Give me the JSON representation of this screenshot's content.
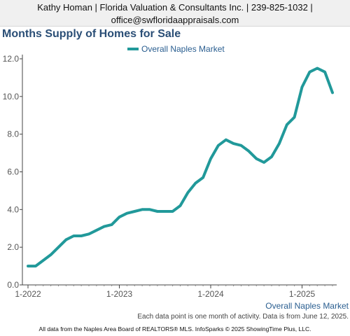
{
  "header": {
    "line1": "Kathy Homan | Florida Valuation & Consultants Inc. | 239-825-1032 |",
    "line2": "office@swfloridaappraisals.com"
  },
  "footnote": "Each data point is one month of activity. Data is from June 12, 2025.",
  "footer": "All data from the Naples Area Board of REALTORS® MLS. InfoSparks © 2025 ShowingTime Plus, LLC.",
  "colors": {
    "line": "#21999a",
    "title": "#2a4e76",
    "legend_text": "#2a5e90"
  },
  "chart_data": {
    "type": "line",
    "title": "Months Supply of Homes for Sale",
    "series_label": "Overall Naples Market",
    "legend_position": "top-center",
    "grid": false,
    "xlabel": "",
    "ylabel": "",
    "ylim": [
      0,
      12
    ],
    "y_ticks": [
      "0.0",
      "2.0",
      "4.0",
      "6.0",
      "8.0",
      "10.0",
      "12.0"
    ],
    "x_ticks": [
      "1-2022",
      "1-2023",
      "1-2024",
      "1-2025"
    ],
    "series": [
      {
        "name": "Overall Naples Market",
        "x": [
          "2022-01",
          "2022-02",
          "2022-03",
          "2022-04",
          "2022-05",
          "2022-06",
          "2022-07",
          "2022-08",
          "2022-09",
          "2022-10",
          "2022-11",
          "2022-12",
          "2023-01",
          "2023-02",
          "2023-03",
          "2023-04",
          "2023-05",
          "2023-06",
          "2023-07",
          "2023-08",
          "2023-09",
          "2023-10",
          "2023-11",
          "2023-12",
          "2024-01",
          "2024-02",
          "2024-03",
          "2024-04",
          "2024-05",
          "2024-06",
          "2024-07",
          "2024-08",
          "2024-09",
          "2024-10",
          "2024-11",
          "2024-12",
          "2025-01",
          "2025-02",
          "2025-03",
          "2025-04",
          "2025-05"
        ],
        "values": [
          1.0,
          1.0,
          1.3,
          1.6,
          2.0,
          2.4,
          2.6,
          2.6,
          2.7,
          2.9,
          3.1,
          3.2,
          3.6,
          3.8,
          3.9,
          4.0,
          4.0,
          3.9,
          3.9,
          3.9,
          4.2,
          4.9,
          5.4,
          5.7,
          6.7,
          7.4,
          7.7,
          7.5,
          7.4,
          7.1,
          6.7,
          6.5,
          6.8,
          7.5,
          8.5,
          8.9,
          10.5,
          11.3,
          11.5,
          11.3,
          10.2
        ]
      }
    ]
  }
}
